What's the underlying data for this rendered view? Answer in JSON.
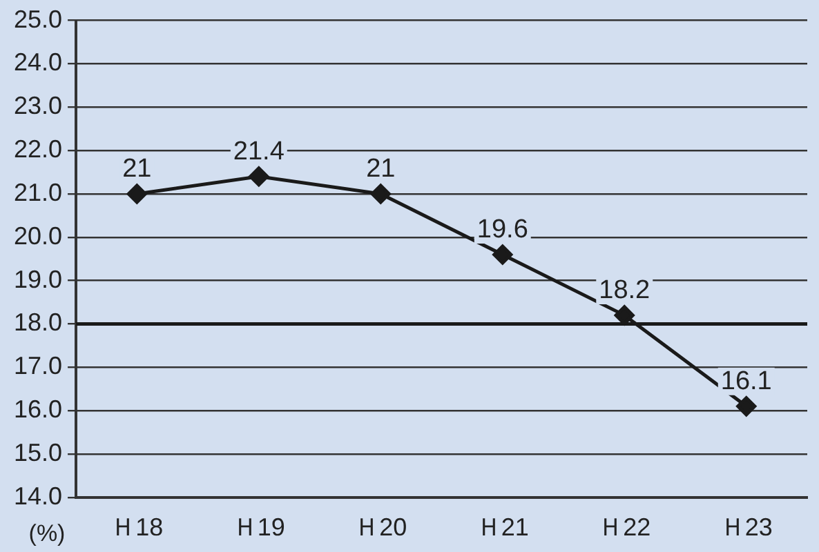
{
  "chart_data": {
    "type": "line",
    "categories": [
      "Ｈ18",
      "Ｈ19",
      "Ｈ20",
      "Ｈ21",
      "Ｈ22",
      "Ｈ23"
    ],
    "series": [
      {
        "color": "#1a1a1a",
        "values": [
          21,
          21.4,
          21,
          19.6,
          18.2,
          16.1
        ]
      }
    ],
    "ylabel": "(%)",
    "ylim": [
      14,
      25
    ],
    "yticks": [
      {
        "value": 14,
        "label": "14.0"
      },
      {
        "value": 15,
        "label": "15.0"
      },
      {
        "value": 16,
        "label": "16.0"
      },
      {
        "value": 17,
        "label": "17.0"
      },
      {
        "value": 18,
        "label": "18.0"
      },
      {
        "value": 19,
        "label": "19.0"
      },
      {
        "value": 20,
        "label": "20.0"
      },
      {
        "value": 21,
        "label": "21.0"
      },
      {
        "value": 22,
        "label": "22.0"
      },
      {
        "value": 23,
        "label": "23.0"
      },
      {
        "value": 24,
        "label": "24.0"
      },
      {
        "value": 25,
        "label": "25.0"
      }
    ],
    "ref_lines": [
      {
        "axis": "y",
        "value": 18,
        "color": "#1a1a1a"
      }
    ],
    "grid": "y",
    "legend": false,
    "marker": "diamond",
    "line_style": "solid",
    "data_labels": true
  }
}
